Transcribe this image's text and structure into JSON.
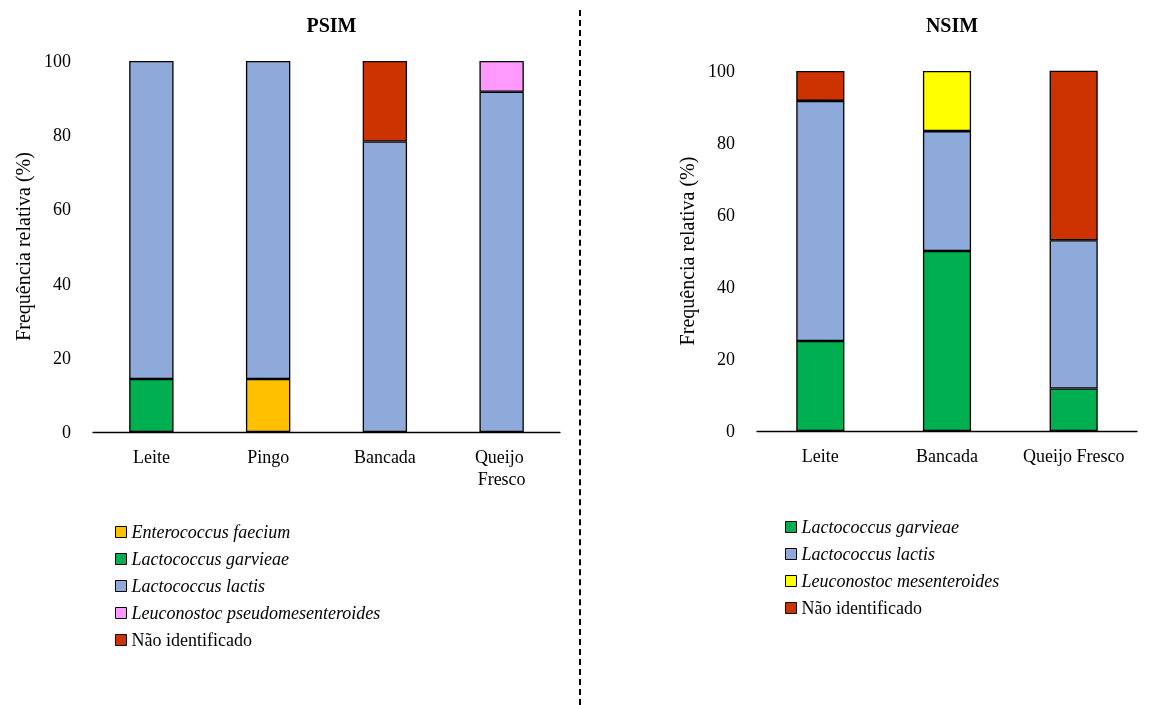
{
  "chart_data": [
    {
      "type": "bar",
      "title": "PSIM",
      "ylabel": "Frequência relativa (%)",
      "categories": [
        "Leite",
        "Pingo",
        "Bancada",
        "Queijo Fresco"
      ],
      "stacked": true,
      "ylim": [
        0,
        100
      ],
      "yticks": [
        0,
        20,
        40,
        60,
        80,
        100
      ],
      "legend": "bottom",
      "series": [
        {
          "name": "Enterococcus faecium",
          "color": "#ffc000",
          "values": [
            null,
            14.3,
            null,
            null
          ]
        },
        {
          "name": "Lactococcus garvieae",
          "color": "#00b050",
          "values": [
            14.3,
            null,
            null,
            null
          ]
        },
        {
          "name": "Lactococcus lactis",
          "color": "#8eaadb",
          "values": [
            85.7,
            85.7,
            78.3,
            91.7
          ]
        },
        {
          "name": "Leuconostoc pseudomesenteroides",
          "color": "#ff99ff",
          "values": [
            null,
            null,
            null,
            8.3
          ]
        },
        {
          "name": "Não identificado",
          "color": "#cc3300",
          "values": [
            null,
            null,
            21.7,
            null
          ]
        }
      ]
    },
    {
      "type": "bar",
      "title": "NSIM",
      "ylabel": "Frequência relativa (%)",
      "categories": [
        "Leite",
        "Bancada",
        "Queijo Fresco"
      ],
      "stacked": true,
      "ylim": [
        0,
        100
      ],
      "yticks": [
        0,
        20,
        40,
        60,
        80,
        100
      ],
      "legend": "bottom",
      "series": [
        {
          "name": "Lactococcus garvieae",
          "color": "#00b050",
          "values": [
            25,
            50,
            11.8
          ]
        },
        {
          "name": "Lactococcus lactis",
          "color": "#8eaadb",
          "values": [
            66.7,
            33.3,
            41.2
          ]
        },
        {
          "name": "Leuconostoc mesenteroides",
          "color": "#ffff00",
          "values": [
            null,
            16.7,
            null
          ]
        },
        {
          "name": "Não identificado",
          "color": "#cc3300",
          "values": [
            8.3,
            null,
            47.1
          ]
        }
      ]
    }
  ]
}
